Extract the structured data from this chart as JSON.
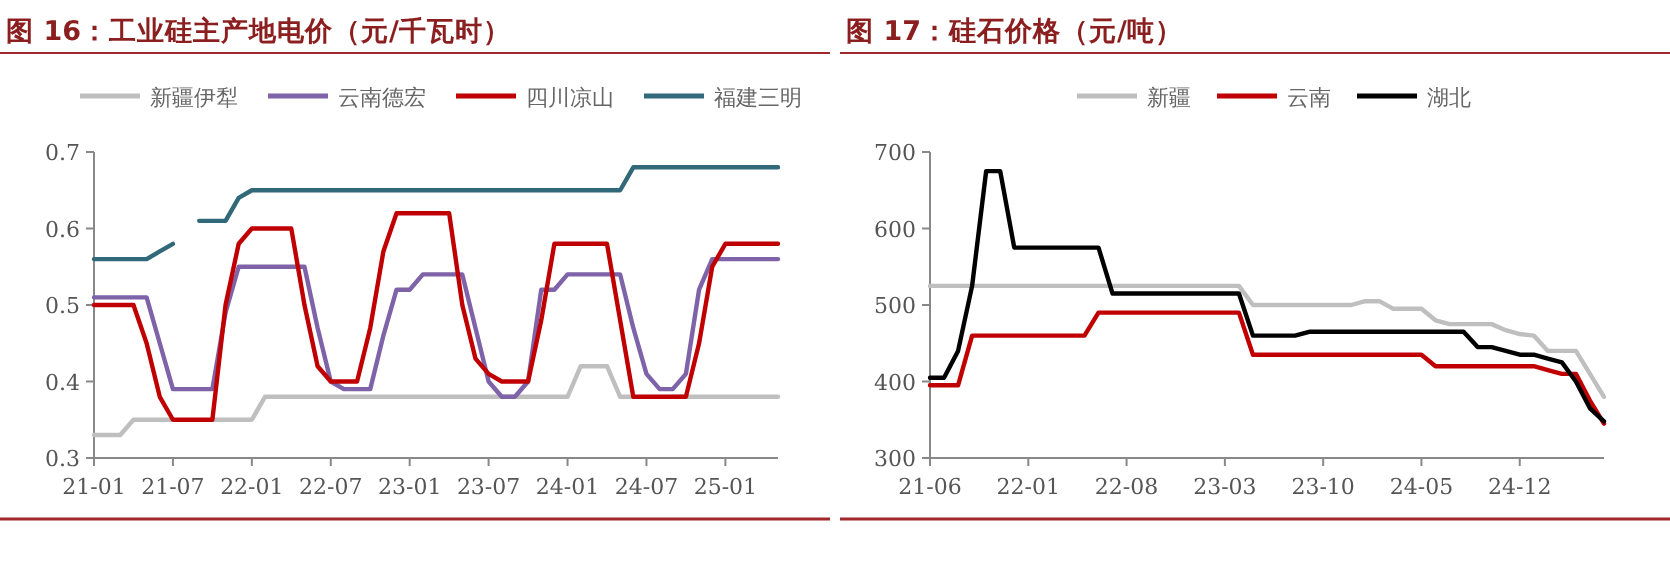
{
  "chart_data": [
    {
      "type": "line",
      "title": "图 16：工业硅主产地电价（元/千瓦时）",
      "legend": "top",
      "grid": false,
      "marker": "none",
      "line_style": "solid",
      "categories": [
        "21-01",
        null,
        null,
        null,
        null,
        null,
        "21-07",
        null,
        null,
        null,
        null,
        null,
        "22-01",
        null,
        null,
        null,
        null,
        null,
        "22-07",
        null,
        null,
        null,
        null,
        null,
        "23-01",
        null,
        null,
        null,
        null,
        null,
        "23-07",
        null,
        null,
        null,
        null,
        null,
        "24-01",
        null,
        null,
        null,
        null,
        null,
        "24-07",
        null,
        null,
        null,
        null,
        null,
        "25-01",
        null,
        null,
        null,
        null
      ],
      "ylim": [
        0.3,
        0.7
      ],
      "yticks": [
        0.3,
        0.4,
        0.5,
        0.6,
        0.7
      ],
      "series": [
        {
          "name": "新疆伊犁",
          "color": "#bfbfbf",
          "values": [
            0.33,
            0.33,
            0.33,
            0.35,
            0.35,
            0.35,
            0.35,
            null,
            null,
            0.35,
            0.35,
            0.35,
            0.35,
            0.38,
            0.38,
            0.38,
            0.38,
            0.38,
            0.38,
            0.38,
            0.38,
            0.38,
            0.38,
            0.38,
            0.38,
            0.38,
            0.38,
            0.38,
            0.38,
            0.38,
            0.38,
            0.38,
            0.38,
            0.38,
            0.38,
            0.38,
            0.38,
            0.42,
            0.42,
            0.42,
            0.38,
            0.38,
            null,
            null,
            0.38,
            0.38,
            0.38,
            0.38,
            0.38,
            0.38,
            0.38,
            0.38,
            0.38
          ]
        },
        {
          "name": "云南德宏",
          "color": "#7f63a8",
          "values": [
            0.51,
            0.51,
            0.51,
            0.51,
            0.51,
            0.45,
            0.39,
            0.39,
            0.39,
            0.39,
            0.49,
            0.55,
            0.55,
            0.55,
            0.55,
            0.55,
            0.55,
            0.47,
            0.4,
            0.39,
            0.39,
            0.39,
            0.46,
            0.52,
            0.52,
            0.54,
            0.54,
            0.54,
            0.54,
            0.47,
            0.4,
            0.38,
            0.38,
            0.4,
            0.52,
            0.52,
            0.54,
            0.54,
            0.54,
            0.54,
            0.54,
            0.47,
            0.41,
            0.39,
            0.39,
            0.41,
            0.52,
            0.56,
            0.56,
            0.56,
            0.56,
            0.56,
            0.56
          ]
        },
        {
          "name": "四川凉山",
          "color": "#c00000",
          "values": [
            0.5,
            0.5,
            0.5,
            0.5,
            0.45,
            0.38,
            0.35,
            0.35,
            0.35,
            0.35,
            0.5,
            0.58,
            0.6,
            0.6,
            0.6,
            0.6,
            0.5,
            0.42,
            0.4,
            0.4,
            0.4,
            0.47,
            0.57,
            0.62,
            0.62,
            0.62,
            0.62,
            0.62,
            0.5,
            0.43,
            0.41,
            0.4,
            0.4,
            0.4,
            0.48,
            0.58,
            0.58,
            0.58,
            0.58,
            0.58,
            0.48,
            0.38,
            0.38,
            0.38,
            0.38,
            0.38,
            0.45,
            0.55,
            0.58,
            0.58,
            0.58,
            0.58,
            0.58
          ]
        },
        {
          "name": "福建三明",
          "color": "#31697a",
          "values": [
            0.56,
            0.56,
            0.56,
            0.56,
            0.56,
            0.57,
            0.58,
            null,
            0.61,
            0.61,
            0.61,
            0.64,
            0.65,
            0.65,
            0.65,
            0.65,
            0.65,
            0.65,
            0.65,
            0.65,
            0.65,
            0.65,
            0.65,
            0.65,
            0.65,
            0.65,
            0.65,
            0.65,
            0.65,
            0.65,
            0.65,
            0.65,
            0.65,
            0.65,
            0.65,
            0.65,
            0.65,
            0.65,
            0.65,
            0.65,
            0.65,
            0.68,
            0.68,
            0.68,
            0.68,
            0.68,
            0.68,
            0.68,
            0.68,
            0.68,
            0.68,
            0.68,
            0.68
          ]
        }
      ]
    },
    {
      "type": "line",
      "title": "图 17：硅石价格（元/吨）",
      "legend": "top",
      "grid": false,
      "marker": "none",
      "line_style": "solid",
      "categories": [
        "21-06",
        null,
        null,
        null,
        null,
        null,
        null,
        "22-01",
        null,
        null,
        null,
        null,
        null,
        null,
        "22-08",
        null,
        null,
        null,
        null,
        null,
        null,
        "23-03",
        null,
        null,
        null,
        null,
        null,
        null,
        "23-10",
        null,
        null,
        null,
        null,
        null,
        null,
        "24-05",
        null,
        null,
        null,
        null,
        null,
        null,
        "24-12",
        null,
        null,
        null,
        null,
        null,
        null
      ],
      "ylim": [
        300,
        700
      ],
      "yticks": [
        300,
        400,
        500,
        600,
        700
      ],
      "series": [
        {
          "name": "新疆",
          "color": "#bfbfbf",
          "values": [
            525,
            525,
            525,
            525,
            525,
            525,
            525,
            525,
            525,
            525,
            525,
            525,
            525,
            525,
            525,
            525,
            525,
            525,
            525,
            525,
            525,
            525,
            525,
            500,
            500,
            500,
            500,
            500,
            500,
            500,
            500,
            505,
            505,
            495,
            495,
            495,
            480,
            475,
            475,
            475,
            475,
            467,
            462,
            460,
            440,
            440,
            440,
            410,
            380
          ]
        },
        {
          "name": "云南",
          "color": "#c00000",
          "values": [
            395,
            395,
            395,
            460,
            460,
            460,
            460,
            460,
            460,
            460,
            460,
            460,
            490,
            490,
            490,
            490,
            490,
            490,
            490,
            490,
            490,
            490,
            490,
            435,
            435,
            435,
            435,
            435,
            435,
            435,
            435,
            435,
            435,
            435,
            435,
            435,
            420,
            420,
            420,
            420,
            420,
            420,
            420,
            420,
            415,
            410,
            410,
            375,
            345
          ]
        },
        {
          "name": "湖北",
          "color": "#000000",
          "values": [
            405,
            405,
            440,
            525,
            675,
            675,
            575,
            575,
            575,
            575,
            575,
            575,
            575,
            515,
            515,
            515,
            515,
            515,
            515,
            515,
            515,
            515,
            515,
            460,
            460,
            460,
            460,
            465,
            465,
            465,
            465,
            465,
            465,
            465,
            465,
            465,
            465,
            465,
            465,
            445,
            445,
            440,
            435,
            435,
            430,
            425,
            400,
            365,
            348
          ]
        }
      ]
    }
  ]
}
